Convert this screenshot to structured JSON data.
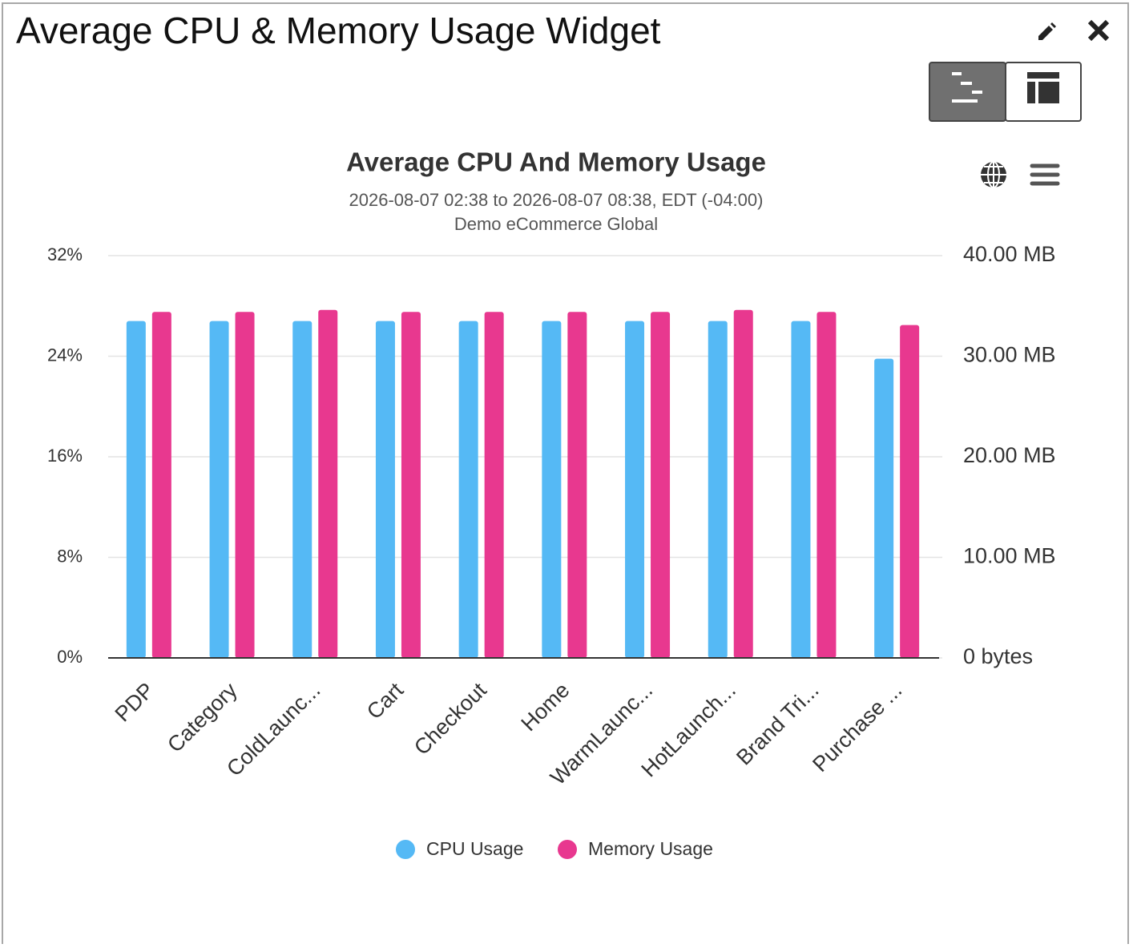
{
  "header": {
    "title": "Average CPU & Memory Usage Widget"
  },
  "chart_data": {
    "type": "bar",
    "title": "Average CPU And Memory Usage",
    "subtitle": [
      "2026-08-07 02:38 to 2026-08-07 08:38, EDT (-04:00)",
      "Demo eCommerce Global"
    ],
    "categories": [
      "PDP",
      "Category",
      "ColdLaunc...",
      "Cart",
      "Checkout",
      "Home",
      "WarmLaunc...",
      "HotLaunch...",
      "Brand Tri...",
      "Purchase ..."
    ],
    "series": [
      {
        "name": "CPU Usage",
        "color": "#55b9f5",
        "values": [
          26.8,
          26.8,
          26.8,
          26.8,
          26.8,
          26.8,
          26.8,
          26.8,
          26.8,
          23.8
        ]
      },
      {
        "name": "Memory Usage",
        "color": "#e8388f",
        "axis": "y2",
        "values": [
          34.4,
          34.4,
          34.6,
          34.4,
          34.4,
          34.4,
          34.4,
          34.6,
          34.4,
          33.1
        ]
      }
    ],
    "ylim": [
      0,
      32
    ],
    "yticks": [
      {
        "value": 0,
        "label": "0%"
      },
      {
        "value": 8,
        "label": "8%"
      },
      {
        "value": 16,
        "label": "16%"
      },
      {
        "value": 24,
        "label": "24%"
      },
      {
        "value": 32,
        "label": "32%"
      }
    ],
    "y2lim": [
      0,
      40
    ],
    "y2ticks": [
      {
        "value": 0,
        "label": "0 bytes"
      },
      {
        "value": 10,
        "label": "10.00 MB"
      },
      {
        "value": 20,
        "label": "20.00 MB"
      },
      {
        "value": 30,
        "label": "30.00 MB"
      },
      {
        "value": 40,
        "label": "40.00 MB"
      }
    ],
    "grid": true
  }
}
